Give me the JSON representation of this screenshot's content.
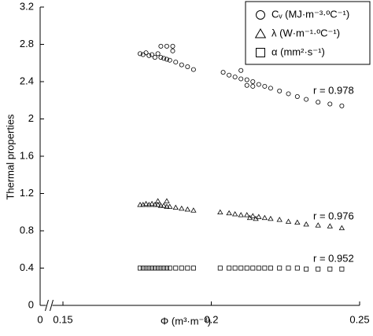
{
  "chart_data": {
    "type": "scatter",
    "x_label": "Φ (m³·m⁻³)",
    "y_label": "Thermal properties",
    "xlim": [
      0,
      0.25
    ],
    "x_break": [
      0,
      0.15
    ],
    "xticks": [
      0,
      0.15,
      0.2,
      0.25
    ],
    "ylim": [
      0,
      3.2
    ],
    "yticks": [
      0,
      0.4,
      0.8,
      1.2,
      1.6,
      2,
      2.4,
      2.8,
      3.2
    ],
    "legend": "top-right",
    "series": [
      {
        "name": "Cᵥ (MJ·m⁻³·ºC⁻¹)",
        "marker": "circle",
        "color": "#000000",
        "x": [
          0.176,
          0.177,
          0.178,
          0.179,
          0.18,
          0.181,
          0.182,
          0.183,
          0.184,
          0.185,
          0.186,
          0.188,
          0.19,
          0.192,
          0.194,
          0.204,
          0.206,
          0.208,
          0.21,
          0.212,
          0.214,
          0.216,
          0.218,
          0.22,
          0.223,
          0.226,
          0.229,
          0.232,
          0.236,
          0.24,
          0.244,
          0.183,
          0.185,
          0.187,
          0.187,
          0.212,
          0.214,
          0.21
        ],
        "values": [
          2.7,
          2.69,
          2.71,
          2.68,
          2.69,
          2.66,
          2.7,
          2.66,
          2.65,
          2.64,
          2.63,
          2.61,
          2.58,
          2.56,
          2.53,
          2.5,
          2.47,
          2.45,
          2.43,
          2.42,
          2.4,
          2.37,
          2.35,
          2.33,
          2.3,
          2.27,
          2.24,
          2.21,
          2.18,
          2.16,
          2.14,
          2.78,
          2.78,
          2.78,
          2.73,
          2.36,
          2.35,
          2.52
        ]
      },
      {
        "name": "λ (W·m⁻¹·ºC⁻¹)",
        "marker": "triangle",
        "color": "#000000",
        "x": [
          0.176,
          0.177,
          0.178,
          0.179,
          0.18,
          0.181,
          0.182,
          0.183,
          0.184,
          0.185,
          0.186,
          0.188,
          0.19,
          0.192,
          0.194,
          0.203,
          0.206,
          0.208,
          0.21,
          0.212,
          0.214,
          0.216,
          0.218,
          0.22,
          0.223,
          0.226,
          0.229,
          0.232,
          0.236,
          0.24,
          0.244,
          0.182,
          0.185,
          0.213,
          0.215
        ],
        "values": [
          1.08,
          1.08,
          1.09,
          1.08,
          1.09,
          1.08,
          1.08,
          1.07,
          1.07,
          1.06,
          1.06,
          1.05,
          1.04,
          1.03,
          1.02,
          1.0,
          0.99,
          0.98,
          0.97,
          0.97,
          0.96,
          0.95,
          0.94,
          0.93,
          0.92,
          0.9,
          0.89,
          0.87,
          0.86,
          0.85,
          0.83,
          1.12,
          1.12,
          0.94,
          0.93
        ]
      },
      {
        "name": "α (mm²·s⁻¹)",
        "marker": "square",
        "color": "#000000",
        "x": [
          0.176,
          0.177,
          0.178,
          0.179,
          0.18,
          0.181,
          0.182,
          0.183,
          0.184,
          0.185,
          0.186,
          0.188,
          0.19,
          0.192,
          0.194,
          0.203,
          0.206,
          0.208,
          0.21,
          0.212,
          0.214,
          0.216,
          0.218,
          0.22,
          0.223,
          0.226,
          0.229,
          0.232,
          0.236,
          0.24,
          0.244
        ],
        "values": [
          0.4,
          0.4,
          0.4,
          0.4,
          0.4,
          0.4,
          0.4,
          0.4,
          0.4,
          0.4,
          0.4,
          0.4,
          0.4,
          0.4,
          0.4,
          0.4,
          0.4,
          0.4,
          0.4,
          0.4,
          0.4,
          0.4,
          0.4,
          0.4,
          0.4,
          0.4,
          0.4,
          0.39,
          0.39,
          0.39,
          0.39
        ]
      }
    ],
    "annotations": [
      "r = 0.978",
      "r = 0.976",
      "r = 0.952"
    ]
  }
}
